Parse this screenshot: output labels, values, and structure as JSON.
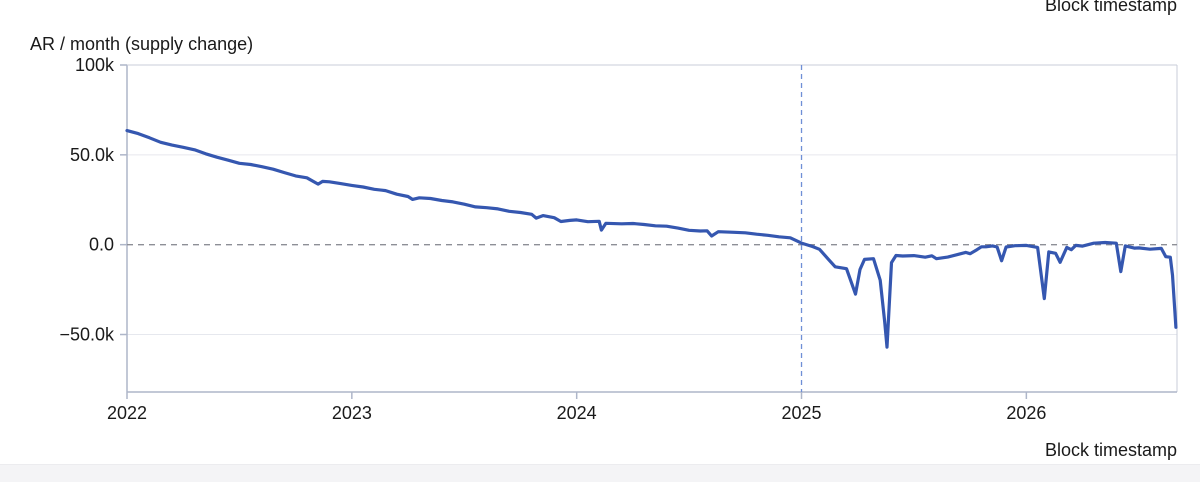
{
  "chart_data": {
    "type": "line",
    "ylabel": "AR / month (supply change)",
    "xlabel": "Block timestamp",
    "xlabel_top": "Block timestamp",
    "ylim": [
      -82000,
      100000
    ],
    "xlim": [
      2022.0,
      2026.67
    ],
    "yticks": [
      {
        "value": 100000,
        "label": "100k"
      },
      {
        "value": 50000,
        "label": "50.0k"
      },
      {
        "value": 0,
        "label": "0.0"
      },
      {
        "value": -50000,
        "label": "−50.0k"
      }
    ],
    "xticks": [
      {
        "value": 2022,
        "label": "2022"
      },
      {
        "value": 2023,
        "label": "2023"
      },
      {
        "value": 2024,
        "label": "2024"
      },
      {
        "value": 2025,
        "label": "2025"
      },
      {
        "value": 2026,
        "label": "2026"
      }
    ],
    "reference_lines": {
      "y_zero": 0,
      "x_vertical": 2025.0
    },
    "grid": "horizontal",
    "line_color": "#3557b0",
    "series": [
      {
        "points": [
          [
            2022.0,
            63500
          ],
          [
            2022.05,
            61800
          ],
          [
            2022.1,
            59500
          ],
          [
            2022.15,
            57000
          ],
          [
            2022.2,
            55400
          ],
          [
            2022.25,
            54200
          ],
          [
            2022.3,
            52800
          ],
          [
            2022.35,
            50600
          ],
          [
            2022.4,
            48700
          ],
          [
            2022.45,
            47000
          ],
          [
            2022.5,
            45300
          ],
          [
            2022.55,
            44600
          ],
          [
            2022.6,
            43400
          ],
          [
            2022.65,
            42000
          ],
          [
            2022.7,
            40100
          ],
          [
            2022.75,
            38300
          ],
          [
            2022.8,
            37200
          ],
          [
            2022.85,
            33700
          ],
          [
            2022.87,
            35200
          ],
          [
            2022.9,
            35000
          ],
          [
            2022.95,
            34000
          ],
          [
            2023.0,
            33000
          ],
          [
            2023.05,
            32100
          ],
          [
            2023.1,
            30800
          ],
          [
            2023.15,
            30100
          ],
          [
            2023.2,
            28100
          ],
          [
            2023.25,
            26800
          ],
          [
            2023.27,
            25200
          ],
          [
            2023.3,
            26100
          ],
          [
            2023.35,
            25700
          ],
          [
            2023.4,
            24600
          ],
          [
            2023.45,
            23800
          ],
          [
            2023.5,
            22500
          ],
          [
            2023.55,
            21000
          ],
          [
            2023.6,
            20600
          ],
          [
            2023.65,
            19900
          ],
          [
            2023.7,
            18600
          ],
          [
            2023.75,
            17900
          ],
          [
            2023.8,
            16900
          ],
          [
            2023.82,
            14800
          ],
          [
            2023.85,
            16200
          ],
          [
            2023.9,
            15000
          ],
          [
            2023.93,
            12900
          ],
          [
            2023.97,
            13500
          ],
          [
            2024.0,
            13800
          ],
          [
            2024.05,
            12800
          ],
          [
            2024.1,
            13000
          ],
          [
            2024.11,
            8100
          ],
          [
            2024.13,
            11900
          ],
          [
            2024.2,
            11600
          ],
          [
            2024.25,
            11800
          ],
          [
            2024.3,
            11200
          ],
          [
            2024.35,
            10500
          ],
          [
            2024.4,
            10300
          ],
          [
            2024.45,
            9200
          ],
          [
            2024.5,
            8000
          ],
          [
            2024.55,
            7600
          ],
          [
            2024.58,
            7700
          ],
          [
            2024.6,
            4800
          ],
          [
            2024.63,
            7200
          ],
          [
            2024.7,
            6900
          ],
          [
            2024.75,
            6600
          ],
          [
            2024.8,
            5800
          ],
          [
            2024.85,
            5200
          ],
          [
            2024.9,
            4400
          ],
          [
            2024.95,
            3800
          ],
          [
            2025.0,
            900
          ],
          [
            2025.05,
            -1100
          ],
          [
            2025.08,
            -2600
          ],
          [
            2025.12,
            -8200
          ],
          [
            2025.15,
            -12300
          ],
          [
            2025.2,
            -13400
          ],
          [
            2025.24,
            -27500
          ],
          [
            2025.26,
            -13800
          ],
          [
            2025.28,
            -8200
          ],
          [
            2025.32,
            -7800
          ],
          [
            2025.35,
            -19800
          ],
          [
            2025.37,
            -43000
          ],
          [
            2025.38,
            -57000
          ],
          [
            2025.4,
            -10000
          ],
          [
            2025.42,
            -6000
          ],
          [
            2025.45,
            -6300
          ],
          [
            2025.5,
            -6100
          ],
          [
            2025.55,
            -7000
          ],
          [
            2025.58,
            -6200
          ],
          [
            2025.6,
            -7800
          ],
          [
            2025.65,
            -6900
          ],
          [
            2025.7,
            -5300
          ],
          [
            2025.73,
            -4300
          ],
          [
            2025.75,
            -5000
          ],
          [
            2025.78,
            -2800
          ],
          [
            2025.8,
            -1200
          ],
          [
            2025.82,
            -1200
          ],
          [
            2025.85,
            -700
          ],
          [
            2025.87,
            -1300
          ],
          [
            2025.89,
            -8900
          ],
          [
            2025.91,
            -1300
          ],
          [
            2025.95,
            -600
          ],
          [
            2026.0,
            -400
          ],
          [
            2026.05,
            -1500
          ],
          [
            2026.08,
            -30000
          ],
          [
            2026.1,
            -4000
          ],
          [
            2026.13,
            -4800
          ],
          [
            2026.15,
            -9800
          ],
          [
            2026.18,
            -1500
          ],
          [
            2026.2,
            -2800
          ],
          [
            2026.22,
            -400
          ],
          [
            2026.25,
            -800
          ],
          [
            2026.3,
            800
          ],
          [
            2026.35,
            1200
          ],
          [
            2026.4,
            800
          ],
          [
            2026.42,
            -15000
          ],
          [
            2026.44,
            -700
          ],
          [
            2026.48,
            -1900
          ],
          [
            2026.5,
            -1800
          ],
          [
            2026.55,
            -2500
          ],
          [
            2026.6,
            -2100
          ],
          [
            2026.62,
            -6700
          ],
          [
            2026.64,
            -7000
          ],
          [
            2026.65,
            -17000
          ],
          [
            2026.665,
            -46000
          ]
        ]
      }
    ]
  }
}
